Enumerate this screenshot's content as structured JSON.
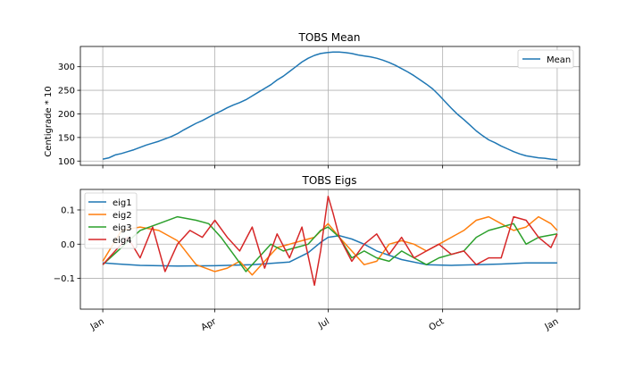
{
  "chart_data": [
    {
      "type": "line",
      "title": "TOBS Mean",
      "xlabel": "",
      "ylabel": "Centigrade * 10",
      "xlim": [
        0,
        365
      ],
      "ylim": [
        91,
        343
      ],
      "yticks": [
        100,
        150,
        200,
        250,
        300
      ],
      "grid": true,
      "legend_position": "upper right",
      "series": [
        {
          "name": "Mean",
          "color": "#1f77b4",
          "x": [
            0,
            5,
            10,
            15,
            20,
            25,
            30,
            35,
            40,
            45,
            50,
            55,
            60,
            65,
            70,
            75,
            80,
            85,
            90,
            95,
            100,
            105,
            110,
            115,
            120,
            125,
            130,
            135,
            140,
            145,
            150,
            155,
            160,
            165,
            170,
            175,
            180,
            185,
            190,
            195,
            200,
            205,
            210,
            215,
            220,
            225,
            230,
            235,
            240,
            245,
            250,
            255,
            260,
            265,
            270,
            275,
            280,
            285,
            290,
            295,
            300,
            305,
            310,
            315,
            320,
            325,
            330,
            335,
            340,
            345,
            350,
            355,
            360,
            365
          ],
          "values": [
            104,
            107,
            113,
            116,
            120,
            124,
            129,
            134,
            138,
            142,
            147,
            152,
            158,
            166,
            173,
            180,
            186,
            193,
            200,
            206,
            213,
            219,
            224,
            230,
            238,
            246,
            254,
            262,
            272,
            280,
            290,
            300,
            310,
            318,
            324,
            328,
            330,
            331,
            331,
            330,
            328,
            325,
            323,
            321,
            318,
            314,
            309,
            303,
            296,
            289,
            281,
            272,
            263,
            253,
            240,
            226,
            212,
            199,
            188,
            176,
            164,
            154,
            145,
            139,
            132,
            126,
            120,
            115,
            111,
            109,
            107,
            106,
            104,
            103
          ]
        }
      ]
    },
    {
      "type": "line",
      "title": "TOBS Eigs",
      "xlabel": "",
      "ylabel": "",
      "xlim": [
        -18,
        383
      ],
      "ylim": [
        -0.19,
        0.16
      ],
      "yticks": [
        -0.1,
        0.0,
        0.1
      ],
      "ytick_labels": [
        "−0.1",
        "0.0",
        "0.1"
      ],
      "xticks": [
        0,
        90,
        181,
        273,
        365
      ],
      "xtick_labels": [
        "Jan",
        "Apr",
        "Jul",
        "Oct",
        "Jan"
      ],
      "grid": true,
      "legend_position": "upper left",
      "series": [
        {
          "name": "eig1",
          "color": "#1f77b4",
          "x": [
            0,
            30,
            60,
            90,
            120,
            150,
            165,
            175,
            181,
            190,
            200,
            210,
            220,
            240,
            260,
            280,
            300,
            320,
            340,
            365
          ],
          "values": [
            -0.055,
            -0.062,
            -0.064,
            -0.063,
            -0.06,
            -0.052,
            -0.025,
            0.005,
            0.02,
            0.025,
            0.015,
            0.0,
            -0.02,
            -0.045,
            -0.06,
            -0.062,
            -0.06,
            -0.058,
            -0.055,
            -0.055
          ]
        },
        {
          "name": "eig2",
          "color": "#ff7f0e",
          "x": [
            0,
            15,
            30,
            45,
            60,
            75,
            90,
            100,
            110,
            120,
            130,
            140,
            150,
            160,
            170,
            181,
            190,
            200,
            210,
            220,
            230,
            240,
            250,
            260,
            270,
            280,
            290,
            300,
            310,
            320,
            330,
            340,
            350,
            360,
            365
          ],
          "values": [
            -0.05,
            0.04,
            0.05,
            0.04,
            0.01,
            -0.06,
            -0.08,
            -0.07,
            -0.05,
            -0.09,
            -0.05,
            -0.01,
            0.0,
            0.01,
            0.02,
            0.06,
            0.02,
            -0.02,
            -0.06,
            -0.05,
            0.0,
            0.01,
            0.0,
            -0.02,
            0.0,
            0.02,
            0.04,
            0.07,
            0.08,
            0.06,
            0.04,
            0.05,
            0.08,
            0.06,
            0.04
          ]
        },
        {
          "name": "eig3",
          "color": "#2ca02c",
          "x": [
            0,
            15,
            30,
            45,
            60,
            75,
            85,
            95,
            105,
            115,
            125,
            135,
            145,
            155,
            165,
            175,
            181,
            190,
            200,
            210,
            220,
            230,
            240,
            250,
            260,
            270,
            280,
            290,
            300,
            310,
            320,
            330,
            340,
            350,
            365
          ],
          "values": [
            -0.06,
            -0.01,
            0.04,
            0.06,
            0.08,
            0.07,
            0.06,
            0.02,
            -0.03,
            -0.08,
            -0.04,
            0.0,
            -0.02,
            -0.01,
            0.0,
            0.04,
            0.05,
            0.02,
            -0.04,
            -0.02,
            -0.04,
            -0.05,
            -0.02,
            -0.04,
            -0.06,
            -0.04,
            -0.03,
            -0.02,
            0.02,
            0.04,
            0.05,
            0.06,
            0.0,
            0.02,
            0.03
          ]
        },
        {
          "name": "eig4",
          "color": "#d62728",
          "x": [
            0,
            10,
            20,
            30,
            40,
            50,
            60,
            70,
            80,
            90,
            100,
            110,
            120,
            130,
            140,
            150,
            160,
            170,
            175,
            181,
            185,
            190,
            200,
            210,
            220,
            230,
            240,
            250,
            260,
            270,
            280,
            290,
            300,
            310,
            320,
            330,
            340,
            350,
            360,
            365
          ],
          "values": [
            -0.06,
            -0.02,
            0.02,
            -0.04,
            0.05,
            -0.08,
            0.0,
            0.04,
            0.02,
            0.07,
            0.02,
            -0.02,
            0.05,
            -0.07,
            0.03,
            -0.04,
            0.05,
            -0.12,
            -0.02,
            0.14,
            0.09,
            0.02,
            -0.05,
            0.0,
            0.03,
            -0.03,
            0.02,
            -0.04,
            -0.02,
            0.0,
            -0.03,
            -0.02,
            -0.06,
            -0.04,
            -0.04,
            0.08,
            0.07,
            0.02,
            -0.01,
            0.03
          ]
        }
      ]
    }
  ]
}
